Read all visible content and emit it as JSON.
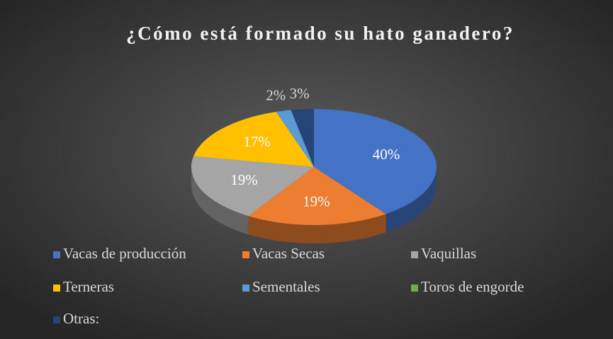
{
  "chart_data": {
    "type": "pie",
    "title": "¿Cómo está formado su hato ganadero?",
    "categories": [
      "Vacas de producción",
      "Vacas Secas",
      "Vaquillas",
      "Terneras",
      "Sementales",
      "Toros de engorde",
      "Otras:"
    ],
    "values": [
      40,
      19,
      19,
      17,
      2,
      0,
      3
    ],
    "value_labels": [
      "40%",
      "19%",
      "19%",
      "17%",
      "2%",
      null,
      "3%"
    ],
    "colors": [
      "#4472c4",
      "#ed7d31",
      "#a5a5a5",
      "#ffc000",
      "#5b9bd5",
      "#70ad47",
      "#264478"
    ],
    "legend": "bottom"
  }
}
